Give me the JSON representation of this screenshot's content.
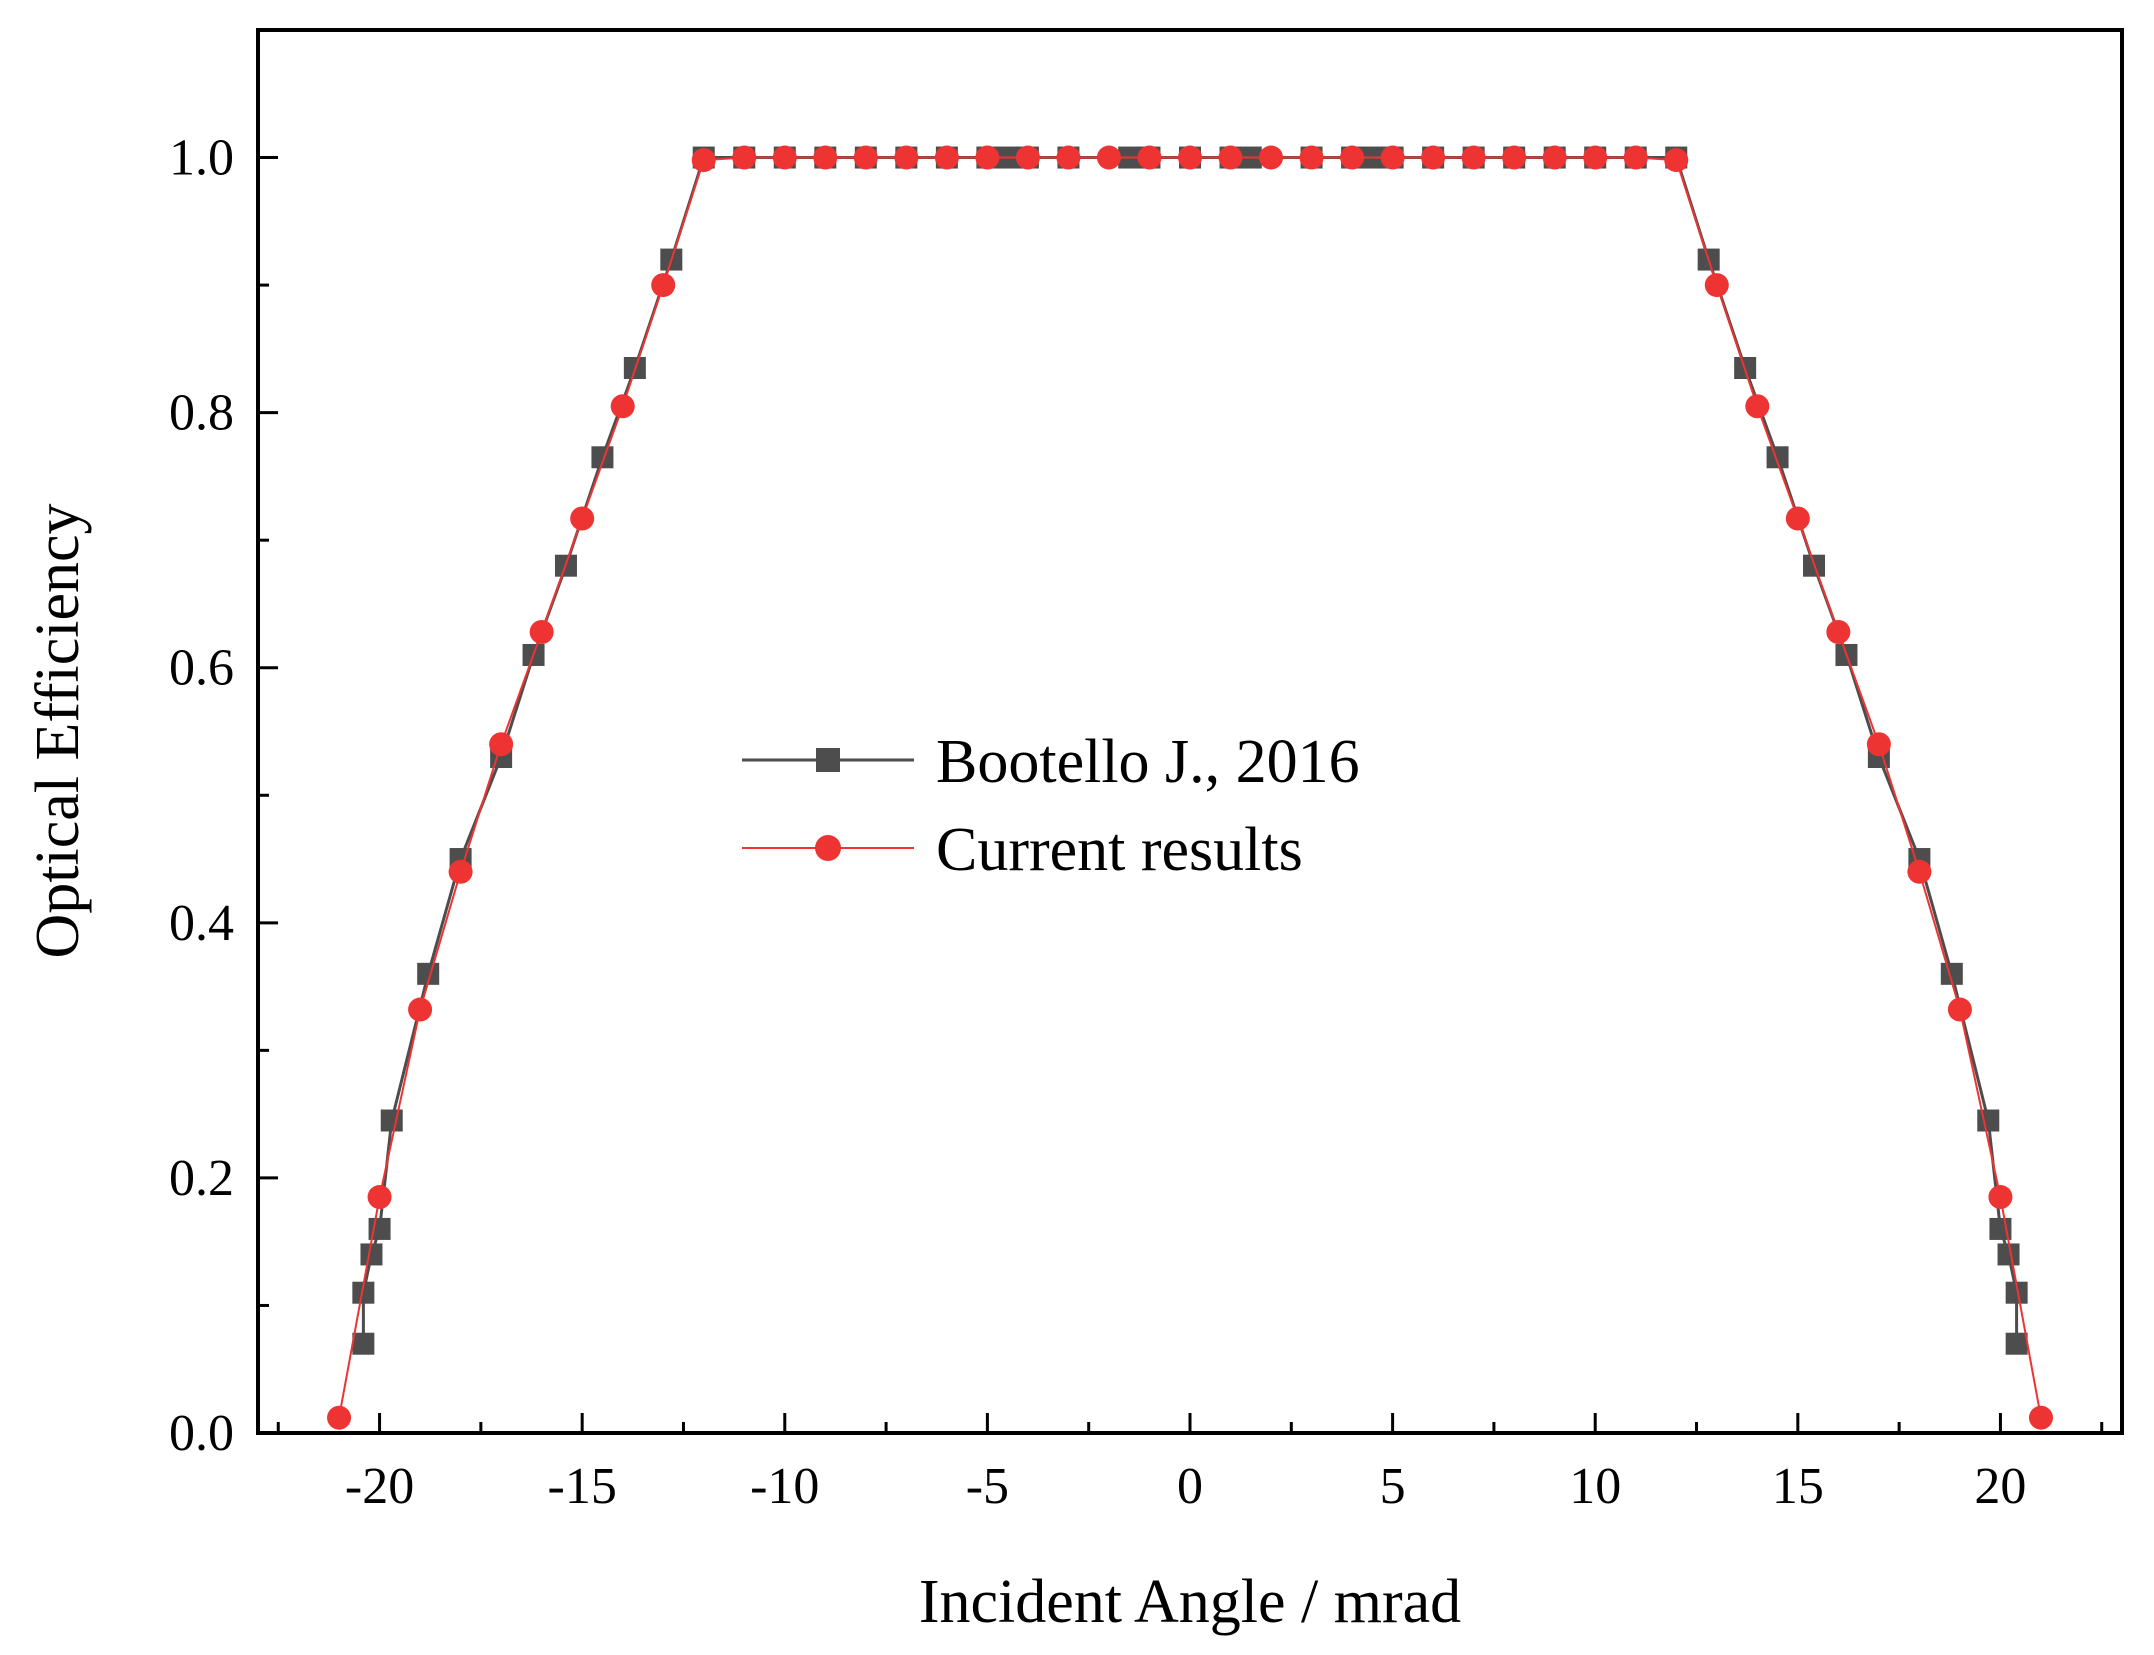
{
  "chart_data": {
    "type": "line",
    "title": "",
    "xlabel": "Incident Angle / mrad",
    "ylabel": "Optical Efficiency",
    "xlim": [
      -23,
      23
    ],
    "ylim": [
      0,
      1.1
    ],
    "xticks": [
      -20,
      -15,
      -10,
      -5,
      0,
      5,
      10,
      15,
      20
    ],
    "xtick_labels": [
      "-20",
      "-15",
      "-10",
      "-5",
      "0",
      "5",
      "10",
      "15",
      "20"
    ],
    "yticks": [
      0.0,
      0.2,
      0.4,
      0.6,
      0.8,
      1.0
    ],
    "ytick_labels": [
      "0.0",
      "0.2",
      "0.4",
      "0.6",
      "0.8",
      "1.0"
    ],
    "grid": false,
    "legend_position": "center",
    "series": [
      {
        "name": "Bootello J., 2016",
        "color": "#4d4d4d",
        "marker": "square",
        "x": [
          -20.4,
          -20.4,
          -20.2,
          -20.0,
          -19.7,
          -18.8,
          -18.0,
          -17.0,
          -16.2,
          -15.4,
          -14.5,
          -13.7,
          -12.8,
          -12.0,
          -11.0,
          -10.0,
          -9.0,
          -8.0,
          -7.0,
          -6.0,
          -5.0,
          -4.5,
          -4.0,
          -3.0,
          -1.5,
          -1.0,
          0.0,
          1.0,
          1.5,
          3.0,
          4.0,
          4.5,
          5.0,
          6.0,
          7.0,
          8.0,
          9.0,
          10.0,
          11.0,
          12.0,
          12.8,
          13.7,
          14.5,
          15.4,
          16.2,
          17.0,
          18.0,
          18.8,
          19.7,
          20.0,
          20.2,
          20.4,
          20.4
        ],
        "y": [
          0.07,
          0.11,
          0.14,
          0.16,
          0.245,
          0.36,
          0.45,
          0.53,
          0.61,
          0.68,
          0.765,
          0.835,
          0.92,
          1.0,
          1.0,
          1.0,
          1.0,
          1.0,
          1.0,
          1.0,
          1.0,
          1.0,
          1.0,
          1.0,
          1.0,
          1.0,
          1.0,
          1.0,
          1.0,
          1.0,
          1.0,
          1.0,
          1.0,
          1.0,
          1.0,
          1.0,
          1.0,
          1.0,
          1.0,
          1.0,
          0.92,
          0.835,
          0.765,
          0.68,
          0.61,
          0.53,
          0.45,
          0.36,
          0.245,
          0.16,
          0.14,
          0.11,
          0.07
        ]
      },
      {
        "name": "Current results",
        "color": "#ee3333",
        "marker": "circle",
        "x": [
          -21.0,
          -20.0,
          -19.0,
          -18.0,
          -17.0,
          -16.0,
          -15.0,
          -14.0,
          -13.0,
          -12.0,
          -11.0,
          -10.0,
          -9.0,
          -8.0,
          -7.0,
          -6.0,
          -5.0,
          -4.0,
          -3.0,
          -2.0,
          -1.0,
          0.0,
          1.0,
          2.0,
          3.0,
          4.0,
          5.0,
          6.0,
          7.0,
          8.0,
          9.0,
          10.0,
          11.0,
          12.0,
          13.0,
          14.0,
          15.0,
          16.0,
          17.0,
          18.0,
          19.0,
          20.0,
          21.0
        ],
        "y": [
          0.012,
          0.185,
          0.332,
          0.44,
          0.54,
          0.628,
          0.717,
          0.805,
          0.9,
          0.998,
          1.0,
          1.0,
          1.0,
          1.0,
          1.0,
          1.0,
          1.0,
          1.0,
          1.0,
          1.0,
          1.0,
          1.0,
          1.0,
          1.0,
          1.0,
          1.0,
          1.0,
          1.0,
          1.0,
          1.0,
          1.0,
          1.0,
          1.0,
          0.998,
          0.9,
          0.805,
          0.717,
          0.628,
          0.54,
          0.44,
          0.332,
          0.185,
          0.012
        ]
      }
    ]
  }
}
